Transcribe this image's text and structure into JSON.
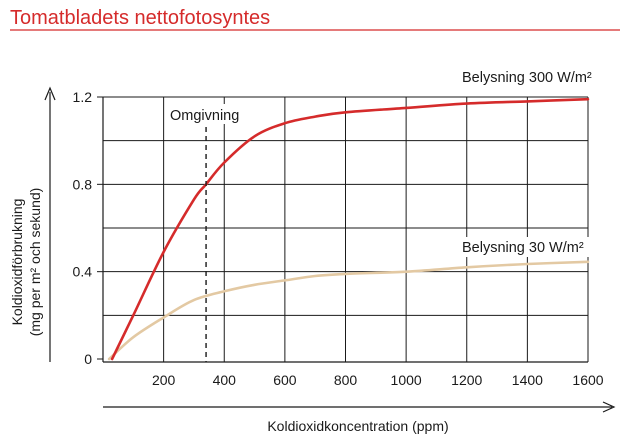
{
  "chart_data": {
    "type": "line",
    "title": "Tomatbladets nettofotosyntes",
    "xlabel": "Koldioxidkoncentration (ppm)",
    "ylabel_lines": [
      "Koldioxidförbrukning",
      "(mg per m² och sekund)"
    ],
    "xlim": [
      0,
      1650
    ],
    "ylim": [
      -0.02,
      1.25
    ],
    "x_ticks": [
      200,
      400,
      600,
      800,
      1000,
      1200,
      1400,
      1600
    ],
    "x_tick_labels": [
      "200",
      "400",
      "600",
      "800",
      "1000",
      "1200",
      "1400",
      "1600"
    ],
    "y_ticks": [
      0,
      0.4,
      0.8,
      1.2
    ],
    "y_tick_labels": [
      "0",
      "0.4",
      "0.8",
      "1.2"
    ],
    "grid": true,
    "series": [
      {
        "name": "Belysning 300 W/m²",
        "color": "#d52b2b",
        "x": [
          30,
          100,
          200,
          300,
          340,
          400,
          500,
          600,
          700,
          800,
          1000,
          1200,
          1400,
          1600
        ],
        "y": [
          0.0,
          0.2,
          0.49,
          0.73,
          0.8,
          0.9,
          1.02,
          1.08,
          1.11,
          1.13,
          1.15,
          1.17,
          1.18,
          1.19
        ]
      },
      {
        "name": "Belysning 30 W/m²",
        "color": "#e3c9a3",
        "x": [
          20,
          100,
          200,
          300,
          400,
          500,
          600,
          700,
          800,
          1000,
          1200,
          1400,
          1600
        ],
        "y": [
          0.0,
          0.1,
          0.19,
          0.27,
          0.31,
          0.34,
          0.36,
          0.38,
          0.39,
          0.4,
          0.42,
          0.435,
          0.445
        ]
      }
    ],
    "annotations": [
      {
        "text": "Omgivning",
        "x": 340,
        "style": "dashed-vertical"
      }
    ]
  }
}
